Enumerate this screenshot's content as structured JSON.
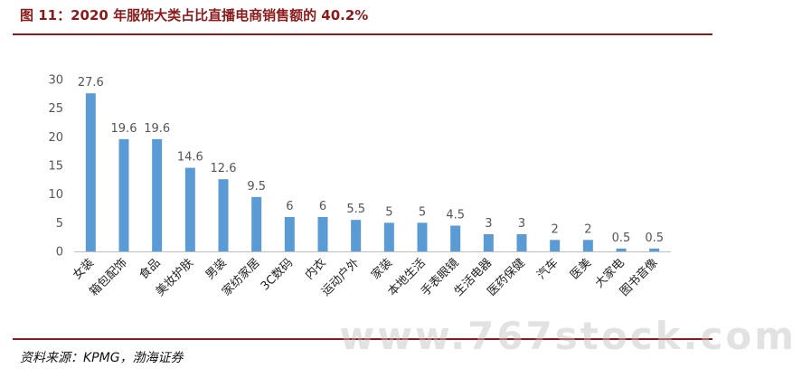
{
  "figure": {
    "title": "图 11：2020 年服饰大类占比直播电商销售额的 40.2%",
    "source": "资料来源：KPMG，渤海证券",
    "watermark": "www.767stock.com"
  },
  "colors": {
    "bar": "#5b9bd5",
    "rule": "#8b1a1a",
    "axis": "#bfbfbf"
  },
  "chart_data": {
    "type": "bar",
    "title": "",
    "xlabel": "",
    "ylabel": "",
    "ylim": [
      0,
      30
    ],
    "yticks": [
      0,
      5,
      10,
      15,
      20,
      25,
      30
    ],
    "grid": false,
    "legend": "none",
    "categories": [
      "女装",
      "箱包配饰",
      "食品",
      "美妆护肤",
      "男装",
      "家纺家居",
      "3C数码",
      "内衣",
      "运动户外",
      "家装",
      "本地生活",
      "手表眼镜",
      "生活电器",
      "医药保健",
      "汽车",
      "医美",
      "大家电",
      "图书音像"
    ],
    "values": [
      27.6,
      19.6,
      19.6,
      14.6,
      12.6,
      9.5,
      6,
      6,
      5.5,
      5,
      5,
      4.5,
      3,
      3,
      2,
      2,
      0.5,
      0.5
    ]
  }
}
